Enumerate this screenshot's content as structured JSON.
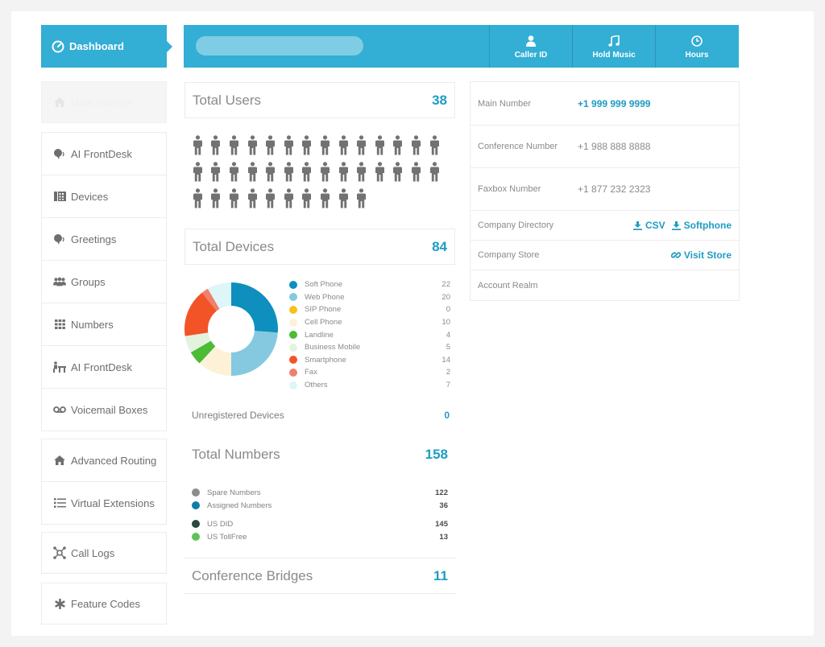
{
  "sidebar": {
    "items": [
      {
        "label": "Dashboard",
        "icon": "dashboard-icon"
      },
      {
        "label": "Main Number",
        "icon": "home-icon"
      },
      {
        "label": "AI FrontDesk",
        "icon": "speaker-icon"
      },
      {
        "label": "Devices",
        "icon": "devices-icon"
      },
      {
        "label": "Greetings",
        "icon": "speaker-icon"
      },
      {
        "label": "Groups",
        "icon": "groups-icon"
      },
      {
        "label": "Numbers",
        "icon": "grid-icon"
      },
      {
        "label": "AI FrontDesk",
        "icon": "desk-icon"
      },
      {
        "label": "Voicemail Boxes",
        "icon": "voicemail-icon"
      },
      {
        "label": "Advanced Routing",
        "icon": "home-icon"
      },
      {
        "label": "Virtual Extensions",
        "icon": "list-icon"
      },
      {
        "label": "Call Logs",
        "icon": "network-icon"
      },
      {
        "label": "Feature Codes",
        "icon": "asterisk-icon"
      }
    ]
  },
  "topbar": {
    "search_placeholder": "",
    "buttons": [
      {
        "label": "Caller ID",
        "icon": "user-icon"
      },
      {
        "label": "Hold Music",
        "icon": "music-icon"
      },
      {
        "label": "Hours",
        "icon": "clock-icon"
      }
    ]
  },
  "stats": {
    "total_users": {
      "label": "Total Users",
      "value": "38"
    },
    "total_devices": {
      "label": "Total Devices",
      "value": "84"
    },
    "unregistered": {
      "label": "Unregistered Devices",
      "value": "0"
    },
    "total_numbers": {
      "label": "Total Numbers",
      "value": "158"
    },
    "conference_bridges": {
      "label": "Conference Bridges",
      "value": "11"
    }
  },
  "users_count_icons": 38,
  "devices": [
    {
      "label": "Soft Phone",
      "value": 22,
      "color": "#0e8fbd"
    },
    {
      "label": "Web Phone",
      "value": 20,
      "color": "#84c9df"
    },
    {
      "label": "SIP Phone",
      "value": 0,
      "color": "#f6c11d"
    },
    {
      "label": "Cell Phone",
      "value": 10,
      "color": "#fdf2d8"
    },
    {
      "label": "Landline",
      "value": 4,
      "color": "#4cbb35"
    },
    {
      "label": "Business Mobile",
      "value": 5,
      "color": "#e2f4de"
    },
    {
      "label": "Smartphone",
      "value": 14,
      "color": "#f25428"
    },
    {
      "label": "Fax",
      "value": 2,
      "color": "#f27f6b"
    },
    {
      "label": "Others",
      "value": 7,
      "color": "#def6f8"
    }
  ],
  "numbers_group1": [
    {
      "label": "Spare Numbers",
      "value": "122",
      "color": "#8c8c8c"
    },
    {
      "label": "Assigned Numbers",
      "value": "36",
      "color": "#0e7ea8"
    }
  ],
  "numbers_group2": [
    {
      "label": "US DID",
      "value": "145",
      "color": "#284a3b"
    },
    {
      "label": "US TollFree",
      "value": "13",
      "color": "#5cc35b"
    }
  ],
  "company": {
    "main_number": {
      "label": "Main Number",
      "value": "+1 999 999 9999"
    },
    "conference_number": {
      "label": "Conference Number",
      "value": "+1 988 888 8888"
    },
    "faxbox_number": {
      "label": "Faxbox Number",
      "value": "+1 877 232 2323"
    },
    "directory": {
      "label": "Company Directory",
      "csv": "CSV",
      "softphone": "Softphone"
    },
    "store": {
      "label": "Company Store",
      "link": "Visit Store"
    },
    "realm": {
      "label": "Account Realm"
    }
  }
}
